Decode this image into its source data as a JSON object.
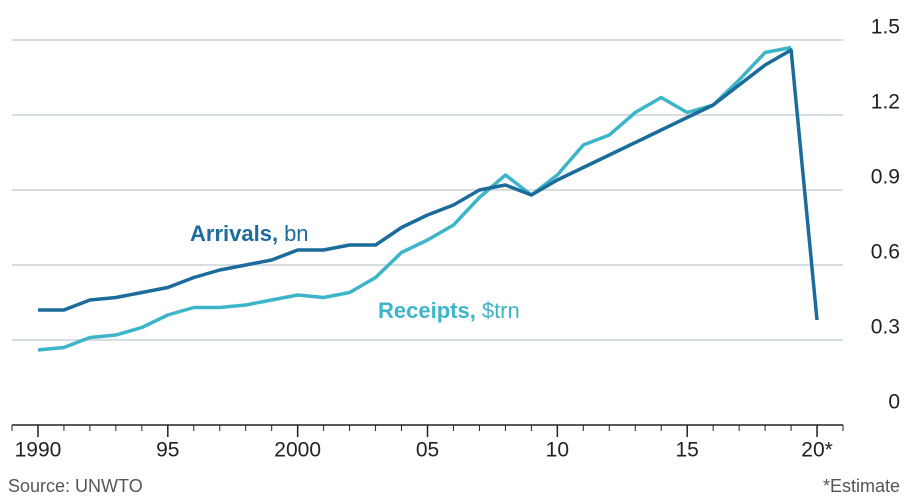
{
  "chart_data": {
    "type": "line",
    "x": [
      1990,
      1991,
      1992,
      1993,
      1994,
      1995,
      1996,
      1997,
      1998,
      1999,
      2000,
      2001,
      2002,
      2003,
      2004,
      2005,
      2006,
      2007,
      2008,
      2009,
      2010,
      2011,
      2012,
      2013,
      2014,
      2015,
      2016,
      2017,
      2018,
      2019,
      2020
    ],
    "series": [
      {
        "name": "Receipts,",
        "unit": "$trn",
        "color": "#3db5c8",
        "values": [
          0.26,
          0.27,
          0.31,
          0.32,
          0.35,
          0.4,
          0.43,
          0.43,
          0.44,
          0.46,
          0.48,
          0.47,
          0.49,
          0.55,
          0.65,
          0.7,
          0.76,
          0.87,
          0.96,
          0.88,
          0.96,
          1.08,
          1.12,
          1.21,
          1.27,
          1.21,
          1.24,
          1.34,
          1.45,
          1.47,
          null
        ]
      },
      {
        "name": "Arrivals,",
        "unit": "bn",
        "color": "#1b6b9b",
        "values": [
          0.42,
          0.42,
          0.46,
          0.47,
          0.49,
          0.51,
          0.55,
          0.58,
          0.6,
          0.62,
          0.66,
          0.66,
          0.68,
          0.68,
          0.75,
          0.8,
          0.84,
          0.9,
          0.92,
          0.88,
          0.94,
          0.99,
          1.04,
          1.09,
          1.14,
          1.19,
          1.24,
          1.32,
          1.4,
          1.46,
          0.38
        ]
      }
    ],
    "xlim": [
      1989,
      2021
    ],
    "xticks": [
      {
        "value": 1990,
        "label": "1990"
      },
      {
        "value": 1995,
        "label": "95"
      },
      {
        "value": 2000,
        "label": "2000"
      },
      {
        "value": 2005,
        "label": "05"
      },
      {
        "value": 2010,
        "label": "10"
      },
      {
        "value": 2015,
        "label": "15"
      },
      {
        "value": 2020,
        "label": "20*"
      }
    ],
    "ylim": [
      0,
      1.5
    ],
    "yticks": [
      0,
      0.3,
      0.6,
      0.9,
      1.2,
      1.5
    ],
    "grid": true,
    "source": "Source: UNWTO",
    "note": "*Estimate"
  }
}
